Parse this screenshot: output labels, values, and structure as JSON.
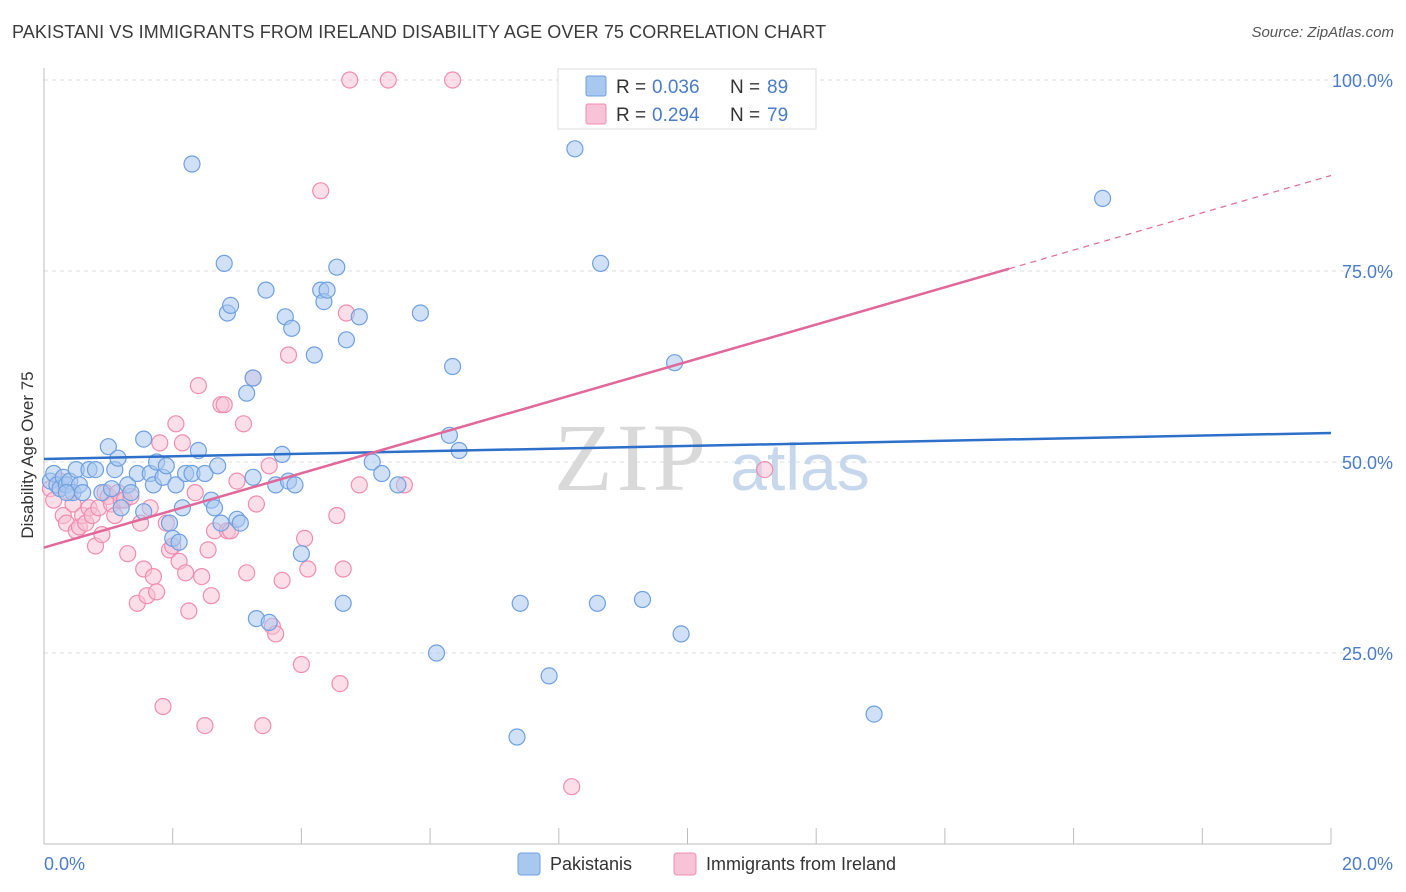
{
  "title": "PAKISTANI VS IMMIGRANTS FROM IRELAND DISABILITY AGE OVER 75 CORRELATION CHART",
  "source": "Source: ZipAtlas.com",
  "chart_data": {
    "type": "scatter",
    "title": "PAKISTANI VS IMMIGRANTS FROM IRELAND DISABILITY AGE OVER 75 CORRELATION CHART",
    "xlabel": "",
    "ylabel": "Disability Age Over 75",
    "xlim": [
      0,
      20
    ],
    "ylim": [
      0,
      100
    ],
    "x_tick_labels": [
      "0.0%",
      "20.0%"
    ],
    "y_ticks": [
      25,
      50,
      75,
      100
    ],
    "y_tick_labels": [
      "25.0%",
      "50.0%",
      "75.0%",
      "100.0%"
    ],
    "grid": true,
    "watermark": {
      "main": "ZIP",
      "sub": "atlas"
    },
    "legend_top": [
      {
        "r_label": "R =",
        "r_value": "0.036",
        "n_label": "N =",
        "n_value": "89"
      },
      {
        "r_label": "R =",
        "r_value": "0.294",
        "n_label": "N =",
        "n_value": "79"
      }
    ],
    "series": [
      {
        "name": "Pakistanis",
        "color": "#6fa0e0",
        "fill": "#a9c8f0",
        "line_color": "#2d6fc9",
        "trend": {
          "x0": 0,
          "y0": 50.4,
          "x1": 20,
          "y1": 53.8,
          "dash_from": null
        },
        "points": [
          [
            0.1,
            47.5
          ],
          [
            0.15,
            48.5
          ],
          [
            0.2,
            47
          ],
          [
            0.25,
            46.5
          ],
          [
            0.3,
            48
          ],
          [
            0.35,
            47
          ],
          [
            0.4,
            47.5
          ],
          [
            0.45,
            46
          ],
          [
            0.5,
            49
          ],
          [
            0.55,
            47
          ],
          [
            0.6,
            46
          ],
          [
            0.7,
            49
          ],
          [
            0.8,
            49
          ],
          [
            0.9,
            46
          ],
          [
            1.0,
            52
          ],
          [
            1.1,
            49
          ],
          [
            1.15,
            50.5
          ],
          [
            1.2,
            44
          ],
          [
            1.3,
            47
          ],
          [
            1.35,
            46
          ],
          [
            1.45,
            48.5
          ],
          [
            1.55,
            43.5
          ],
          [
            1.55,
            53
          ],
          [
            1.65,
            48.5
          ],
          [
            1.7,
            47
          ],
          [
            1.75,
            50
          ],
          [
            1.85,
            48
          ],
          [
            1.9,
            49.5
          ],
          [
            1.95,
            42
          ],
          [
            2.0,
            40
          ],
          [
            2.05,
            47
          ],
          [
            2.1,
            39.5
          ],
          [
            2.15,
            44
          ],
          [
            2.2,
            48.5
          ],
          [
            2.3,
            48.5
          ],
          [
            2.3,
            89
          ],
          [
            2.4,
            51.5
          ],
          [
            2.5,
            48.5
          ],
          [
            2.6,
            45
          ],
          [
            2.65,
            44
          ],
          [
            2.7,
            49.5
          ],
          [
            2.75,
            42
          ],
          [
            2.8,
            76
          ],
          [
            2.85,
            69.5
          ],
          [
            2.9,
            70.5
          ],
          [
            3.0,
            42.5
          ],
          [
            3.05,
            42
          ],
          [
            3.15,
            59
          ],
          [
            3.25,
            48
          ],
          [
            3.25,
            61
          ],
          [
            3.3,
            29.5
          ],
          [
            3.45,
            72.5
          ],
          [
            3.5,
            29
          ],
          [
            3.6,
            47
          ],
          [
            3.7,
            51
          ],
          [
            3.75,
            69
          ],
          [
            3.8,
            47.5
          ],
          [
            3.85,
            67.5
          ],
          [
            3.9,
            47
          ],
          [
            4.0,
            38
          ],
          [
            4.2,
            64
          ],
          [
            4.3,
            72.5
          ],
          [
            4.35,
            71
          ],
          [
            4.4,
            72.5
          ],
          [
            4.55,
            75.5
          ],
          [
            4.65,
            31.5
          ],
          [
            4.7,
            66
          ],
          [
            4.9,
            69
          ],
          [
            5.1,
            50
          ],
          [
            5.25,
            48.5
          ],
          [
            5.5,
            47
          ],
          [
            5.85,
            69.5
          ],
          [
            6.1,
            25
          ],
          [
            6.3,
            53.5
          ],
          [
            6.35,
            62.5
          ],
          [
            6.45,
            51.5
          ],
          [
            7.35,
            14
          ],
          [
            7.4,
            31.5
          ],
          [
            7.85,
            22
          ],
          [
            8.25,
            91
          ],
          [
            8.6,
            31.5
          ],
          [
            8.65,
            76
          ],
          [
            9.3,
            32
          ],
          [
            9.8,
            63
          ],
          [
            9.9,
            27.5
          ],
          [
            12.9,
            17
          ],
          [
            16.45,
            84.5
          ],
          [
            0.35,
            46
          ],
          [
            1.05,
            46.5
          ]
        ]
      },
      {
        "name": "Immigrants from Ireland",
        "color": "#f08db0",
        "fill": "#f8c3d6",
        "line_color": "#e0689a",
        "trend": {
          "x0": 0,
          "y0": 38.8,
          "x1": 15,
          "y1": 75.3,
          "x2": 20,
          "y2": 87.5
        },
        "points": [
          [
            0.1,
            46.5
          ],
          [
            0.15,
            45
          ],
          [
            0.25,
            47.5
          ],
          [
            0.3,
            43
          ],
          [
            0.35,
            42
          ],
          [
            0.4,
            46
          ],
          [
            0.45,
            44.5
          ],
          [
            0.5,
            41
          ],
          [
            0.55,
            41.5
          ],
          [
            0.6,
            43
          ],
          [
            0.65,
            42
          ],
          [
            0.7,
            44
          ],
          [
            0.75,
            43
          ],
          [
            0.8,
            39
          ],
          [
            0.85,
            44
          ],
          [
            0.9,
            40.5
          ],
          [
            0.95,
            46
          ],
          [
            1.0,
            45.5
          ],
          [
            1.05,
            44.5
          ],
          [
            1.1,
            43
          ],
          [
            1.15,
            46
          ],
          [
            1.2,
            45
          ],
          [
            1.25,
            45
          ],
          [
            1.3,
            38
          ],
          [
            1.35,
            45.5
          ],
          [
            1.45,
            31.5
          ],
          [
            1.5,
            42
          ],
          [
            1.55,
            36
          ],
          [
            1.6,
            32.5
          ],
          [
            1.65,
            44
          ],
          [
            1.7,
            35
          ],
          [
            1.75,
            33
          ],
          [
            1.8,
            52.5
          ],
          [
            1.85,
            18
          ],
          [
            1.9,
            42
          ],
          [
            1.95,
            38.5
          ],
          [
            2.0,
            39
          ],
          [
            2.05,
            55
          ],
          [
            2.1,
            37
          ],
          [
            2.15,
            52.5
          ],
          [
            2.2,
            35.5
          ],
          [
            2.25,
            30.5
          ],
          [
            2.35,
            46
          ],
          [
            2.4,
            60
          ],
          [
            2.45,
            35
          ],
          [
            2.5,
            15.5
          ],
          [
            2.55,
            38.5
          ],
          [
            2.6,
            32.5
          ],
          [
            2.65,
            41
          ],
          [
            2.75,
            57.5
          ],
          [
            2.8,
            57.5
          ],
          [
            2.85,
            41
          ],
          [
            2.9,
            41
          ],
          [
            3.0,
            47.5
          ],
          [
            3.1,
            55
          ],
          [
            3.15,
            35.5
          ],
          [
            3.25,
            61
          ],
          [
            3.3,
            44.5
          ],
          [
            3.4,
            15.5
          ],
          [
            3.5,
            49.5
          ],
          [
            3.55,
            28.5
          ],
          [
            3.6,
            27.5
          ],
          [
            3.7,
            34.5
          ],
          [
            3.8,
            64
          ],
          [
            4.0,
            23.5
          ],
          [
            4.05,
            40
          ],
          [
            4.1,
            36
          ],
          [
            4.3,
            85.5
          ],
          [
            4.55,
            43
          ],
          [
            4.6,
            21
          ],
          [
            4.65,
            36
          ],
          [
            4.7,
            69.5
          ],
          [
            4.75,
            100
          ],
          [
            4.9,
            47
          ],
          [
            5.35,
            100
          ],
          [
            5.6,
            47
          ],
          [
            6.35,
            100
          ],
          [
            8.2,
            7.5
          ],
          [
            11.2,
            49
          ]
        ]
      }
    ]
  }
}
